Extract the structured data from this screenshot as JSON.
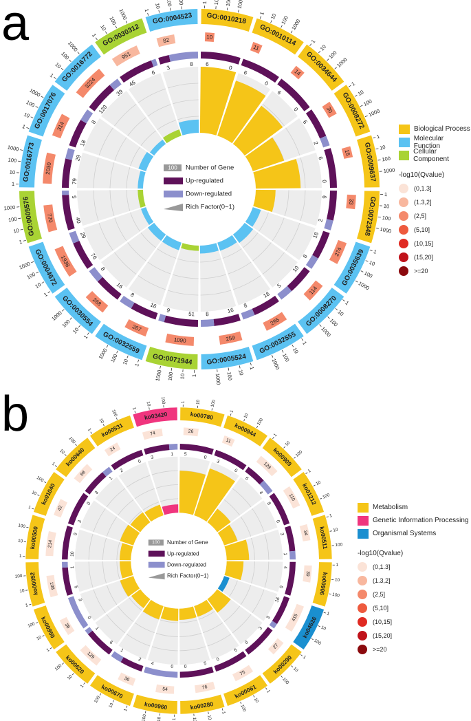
{
  "chart_data": [
    {
      "type": "circos",
      "panel_label": "a",
      "center_legend": {
        "gene_box": "100",
        "gene": "Number of Gene",
        "up": "Up-regulated",
        "down": "Down-regulated",
        "rich": "Rich Factor(0~1)"
      },
      "outer_scale_ticks": [
        "1",
        "10",
        "100",
        "1000"
      ],
      "categories_legend": [
        {
          "name": "Biological Process",
          "color": "#F5C518"
        },
        {
          "name": "Molecular Function",
          "color": "#5BC2F2"
        },
        {
          "name": "Cellular Component",
          "color": "#A9D334"
        }
      ],
      "qvalue_legend": {
        "title": "-log10(Qvalue)",
        "bins": [
          {
            "label": "(0,1.3]",
            "color": "#FBE3D7"
          },
          {
            "label": "(1.3,2]",
            "color": "#F8B79E"
          },
          {
            "label": "(2,5]",
            "color": "#F4896B"
          },
          {
            "label": "(5,10]",
            "color": "#EE5A3E"
          },
          {
            "label": "(10,15]",
            "color": "#E02A22"
          },
          {
            "label": "(15,20]",
            "color": "#C0121A"
          },
          {
            "label": ">=20",
            "color": "#8B0A0E"
          }
        ]
      },
      "terms": [
        {
          "id": "GO:0010218",
          "cat": 0,
          "genes": 10,
          "q": 2,
          "up": 6,
          "down": 0,
          "rich": 1.0
        },
        {
          "id": "GO:0010114",
          "cat": 0,
          "genes": 11,
          "q": 2,
          "up": 6,
          "down": 0,
          "rich": 0.88
        },
        {
          "id": "GO:0034644",
          "cat": 0,
          "genes": 14,
          "q": 2,
          "up": 6,
          "down": 0,
          "rich": 0.72
        },
        {
          "id": "GO:0008272",
          "cat": 0,
          "genes": 30,
          "q": 2,
          "up": 6,
          "down": 2,
          "rich": 0.5
        },
        {
          "id": "GO:0009637",
          "cat": 0,
          "genes": 15,
          "q": 2,
          "up": 6,
          "down": 0,
          "rich": 0.68
        },
        {
          "id": "GO:0072348",
          "cat": 0,
          "genes": 33,
          "q": 2,
          "up": 6,
          "down": 2,
          "rich": 0.3
        },
        {
          "id": "GO:0035639",
          "cat": 1,
          "genes": 274,
          "q": 2,
          "up": 18,
          "down": 8,
          "rich": 0.13
        },
        {
          "id": "GO:0008270",
          "cat": 1,
          "genes": 114,
          "q": 2,
          "up": 10,
          "down": 5,
          "rich": 0.16
        },
        {
          "id": "GO:0032555",
          "cat": 1,
          "genes": 285,
          "q": 2,
          "up": 18,
          "down": 8,
          "rich": 0.13
        },
        {
          "id": "GO:0005524",
          "cat": 1,
          "genes": 259,
          "q": 2,
          "up": 16,
          "down": 8,
          "rich": 0.12
        },
        {
          "id": "GO:0071944",
          "cat": 2,
          "genes": 1090,
          "q": 2,
          "up": 51,
          "down": 9,
          "rich": 0.08
        },
        {
          "id": "GO:0032559",
          "cat": 1,
          "genes": 267,
          "q": 2,
          "up": 16,
          "down": 8,
          "rich": 0.12
        },
        {
          "id": "GO:0030554",
          "cat": 1,
          "genes": 268,
          "q": 2,
          "up": 16,
          "down": 8,
          "rich": 0.12
        },
        {
          "id": "GO:0004672",
          "cat": 1,
          "genes": 1938,
          "q": 2,
          "up": 76,
          "down": 29,
          "rich": 0.08
        },
        {
          "id": "GO:0005576",
          "cat": 2,
          "genes": 770,
          "q": 2,
          "up": 40,
          "down": 5,
          "rich": 0.08
        },
        {
          "id": "GO:0016773",
          "cat": 1,
          "genes": 2030,
          "q": 2,
          "up": 79,
          "down": 29,
          "rich": 0.08
        },
        {
          "id": "GO:0017076",
          "cat": 1,
          "genes": 314,
          "q": 2,
          "up": 18,
          "down": 8,
          "rich": 0.12
        },
        {
          "id": "GO:0016772",
          "cat": 1,
          "genes": 3224,
          "q": 2,
          "up": 120,
          "down": 39,
          "rich": 0.08
        },
        {
          "id": "GO:0030312",
          "cat": 2,
          "genes": 951,
          "q": 1,
          "up": 46,
          "down": 6,
          "rich": 0.1
        },
        {
          "id": "GO:0004523",
          "cat": 1,
          "genes": 82,
          "q": 1,
          "up": 3,
          "down": 8,
          "rich": 0.2
        }
      ]
    },
    {
      "type": "circos",
      "panel_label": "b",
      "center_legend": {
        "gene_box": "100",
        "gene": "Number of Gene",
        "up": "Up-regulated",
        "down": "Down-regulated",
        "rich": "Rich Factor(0~1)"
      },
      "outer_scale_ticks": [
        "1",
        "10",
        "100"
      ],
      "categories_legend": [
        {
          "name": "Metabolism",
          "color": "#F5C518"
        },
        {
          "name": "Genetic Information Processing",
          "color": "#F0357E"
        },
        {
          "name": "Organismal Systems",
          "color": "#1A8FD0"
        }
      ],
      "qvalue_legend": {
        "title": "-log10(Qvalue)",
        "bins": [
          {
            "label": "(0,1.3]",
            "color": "#FBE3D7"
          },
          {
            "label": "(1.3,2]",
            "color": "#F8B79E"
          },
          {
            "label": "(2,5]",
            "color": "#F4896B"
          },
          {
            "label": "(5,10]",
            "color": "#EE5A3E"
          },
          {
            "label": "(10,15]",
            "color": "#E02A22"
          },
          {
            "label": "(15,20]",
            "color": "#C0121A"
          },
          {
            "label": ">=20",
            "color": "#8B0A0E"
          }
        ]
      },
      "terms": [
        {
          "id": "ko00780",
          "cat": 0,
          "genes": 26,
          "q": 0,
          "up": 5,
          "down": 0,
          "rich": 0.75
        },
        {
          "id": "ko00944",
          "cat": 0,
          "genes": 11,
          "q": 0,
          "up": 3,
          "down": 0,
          "rich": 0.88
        },
        {
          "id": "ko00909",
          "cat": 0,
          "genes": 129,
          "q": 0,
          "up": 6,
          "down": 4,
          "rich": 0.3
        },
        {
          "id": "ko01212",
          "cat": 0,
          "genes": 110,
          "q": 0,
          "up": 8,
          "down": 0,
          "rich": 0.25
        },
        {
          "id": "ko00511",
          "cat": 0,
          "genes": 34,
          "q": 0,
          "up": 3,
          "down": 1,
          "rich": 0.4
        },
        {
          "id": "ko00906",
          "cat": 0,
          "genes": 39,
          "q": 0,
          "up": 4,
          "down": 0,
          "rich": 0.3
        },
        {
          "id": "ko04626",
          "cat": 2,
          "genes": 415,
          "q": 0,
          "up": 16,
          "down": 3,
          "rich": 0.1
        },
        {
          "id": "ko00290",
          "cat": 0,
          "genes": 27,
          "q": 0,
          "up": 3,
          "down": 0,
          "rich": 0.3
        },
        {
          "id": "ko00061",
          "cat": 0,
          "genes": 75,
          "q": 0,
          "up": 5,
          "down": 0,
          "rich": 0.2
        },
        {
          "id": "ko00280",
          "cat": 0,
          "genes": 76,
          "q": 0,
          "up": 5,
          "down": 0,
          "rich": 0.2
        },
        {
          "id": "ko00960",
          "cat": 0,
          "genes": 54,
          "q": 0,
          "up": 0,
          "down": 4,
          "rich": 0.22
        },
        {
          "id": "ko00670",
          "cat": 0,
          "genes": 36,
          "q": 0,
          "up": 2,
          "down": 1,
          "rich": 0.25
        },
        {
          "id": "ko00620",
          "cat": 0,
          "genes": 129,
          "q": 0,
          "up": 6,
          "down": 1,
          "rich": 0.2
        },
        {
          "id": "ko00950",
          "cat": 0,
          "genes": 38,
          "q": 0,
          "up": 0,
          "down": 3,
          "rich": 0.25
        },
        {
          "id": "ko00052",
          "cat": 0,
          "genes": 108,
          "q": 0,
          "up": 5,
          "down": 1,
          "rich": 0.2
        },
        {
          "id": "ko00500",
          "cat": 0,
          "genes": 214,
          "q": 0,
          "up": 10,
          "down": 0,
          "rich": 0.2
        },
        {
          "id": "ko01040",
          "cat": 0,
          "genes": 42,
          "q": 0,
          "up": 3,
          "down": 0,
          "rich": 0.25
        },
        {
          "id": "ko00640",
          "cat": 0,
          "genes": 68,
          "q": 0,
          "up": 3,
          "down": 1,
          "rich": 0.22
        },
        {
          "id": "ko00531",
          "cat": 0,
          "genes": 24,
          "q": 0,
          "up": 2,
          "down": 0,
          "rich": 0.2
        },
        {
          "id": "ko03420",
          "cat": 1,
          "genes": 74,
          "q": 0,
          "up": 3,
          "down": 1,
          "rich": 0.15
        }
      ]
    }
  ],
  "colors": {
    "up": "#5E1159",
    "down": "#8C8FCC",
    "grid_bg": "#EDEDED",
    "gene_box": "#999999",
    "rich": "#999999"
  }
}
